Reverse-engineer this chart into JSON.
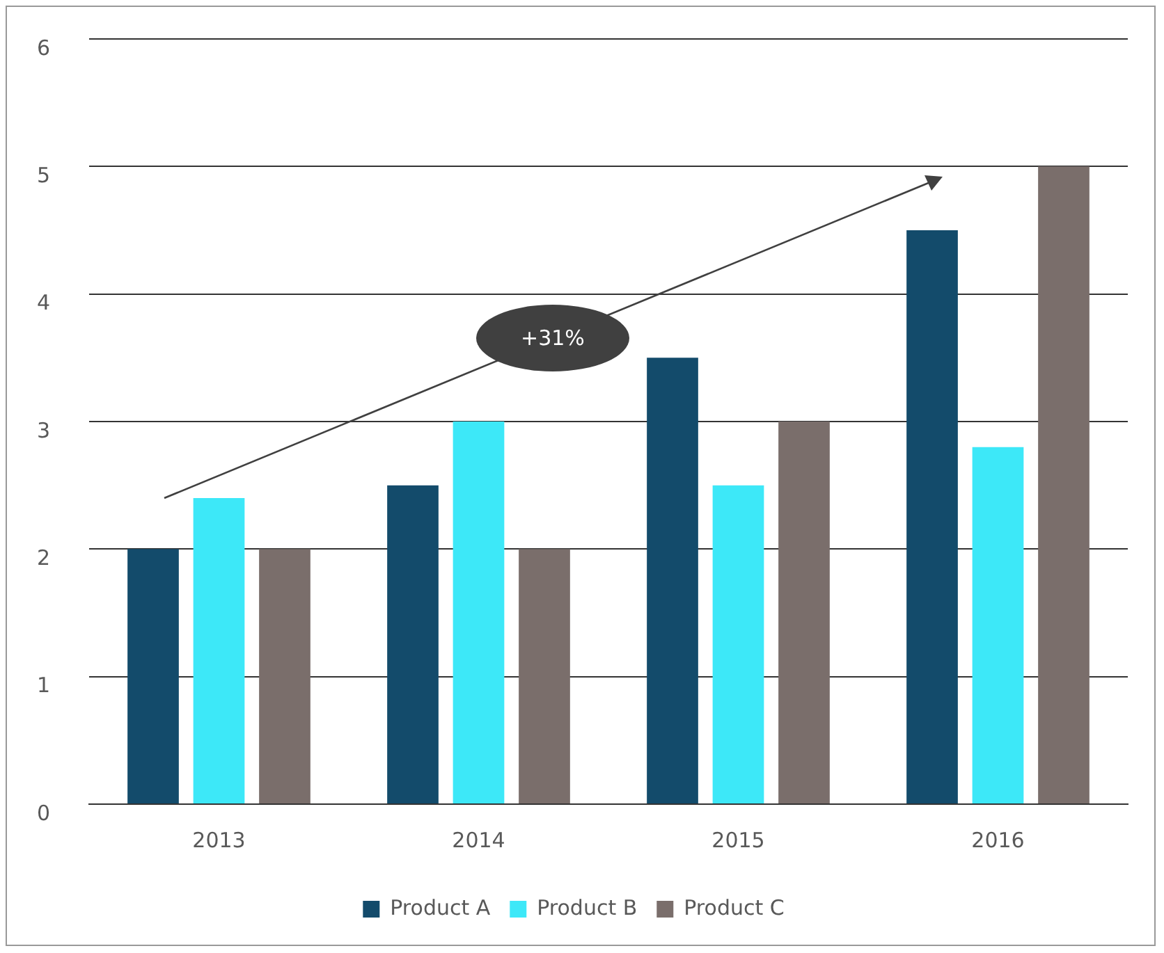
{
  "chart_data": {
    "type": "bar",
    "categories": [
      "2013",
      "2014",
      "2015",
      "2016"
    ],
    "series": [
      {
        "name": "Product A",
        "color": "#134b6b",
        "values": [
          2,
          2.5,
          3.5,
          4.5
        ]
      },
      {
        "name": "Product B",
        "color": "#3de8f8",
        "values": [
          2.4,
          3,
          2.5,
          2.8
        ]
      },
      {
        "name": "Product C",
        "color": "#7a6e6b",
        "values": [
          2,
          2,
          3,
          5
        ]
      }
    ],
    "ylim": [
      0,
      6
    ],
    "yticks": [
      0,
      1,
      2,
      3,
      4,
      5,
      6
    ],
    "grid": "y",
    "legend": "bottom",
    "annotations": [
      "+31%"
    ]
  }
}
